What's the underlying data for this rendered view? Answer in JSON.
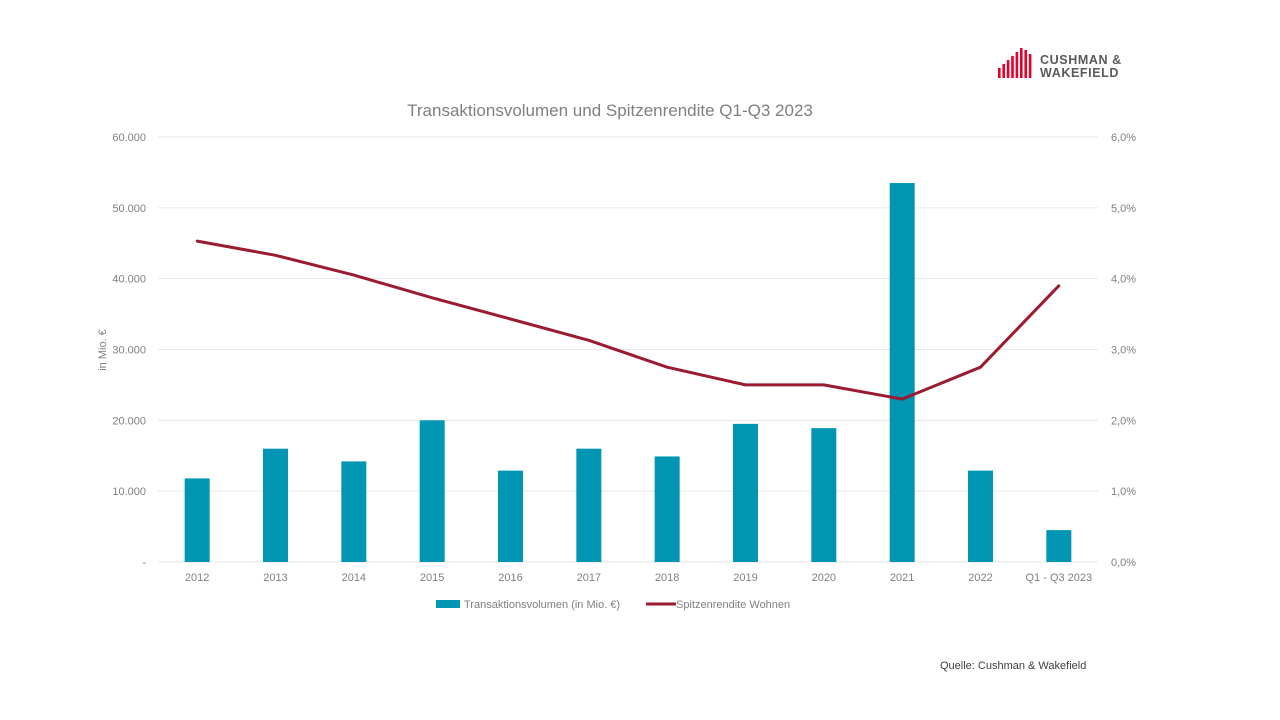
{
  "brand": {
    "line1": "CUSHMAN &",
    "line2": "WAKEFIELD",
    "color": "#e4002b"
  },
  "source": "Quelle: Cushman & Wakefield",
  "chart_data": {
    "type": "bar",
    "title": "Transaktionsvolumen und Spitzenrendite Q1-Q3 2023",
    "ylabel": "in Mio. €",
    "categories": [
      "2012",
      "2013",
      "2014",
      "2015",
      "2016",
      "2017",
      "2018",
      "2019",
      "2020",
      "2021",
      "2022",
      "Q1 - Q3 2023"
    ],
    "ylim": [
      0,
      60000
    ],
    "y2lim": [
      0,
      6.0
    ],
    "y_ticks": [
      "-",
      "10.000",
      "20.000",
      "30.000",
      "40.000",
      "50.000",
      "60.000"
    ],
    "y2_ticks": [
      "0,0%",
      "1,0%",
      "2,0%",
      "3,0%",
      "4,0%",
      "5,0%",
      "6,0%"
    ],
    "grid": true,
    "legend_position": "bottom",
    "series": [
      {
        "name": "Transaktionsvolumen (in Mio. €)",
        "type": "bar",
        "axis": "left",
        "color": "#0095b3",
        "values": [
          11800,
          16000,
          14200,
          20000,
          12900,
          16000,
          14900,
          19500,
          18900,
          53500,
          12900,
          4500
        ]
      },
      {
        "name": "Spitzenrendite Wohnen",
        "type": "line",
        "axis": "right",
        "color": "#9b1b30",
        "values": [
          4.53,
          4.33,
          4.05,
          3.73,
          3.43,
          3.13,
          2.75,
          2.5,
          2.5,
          2.3,
          2.75,
          3.9
        ]
      }
    ]
  }
}
